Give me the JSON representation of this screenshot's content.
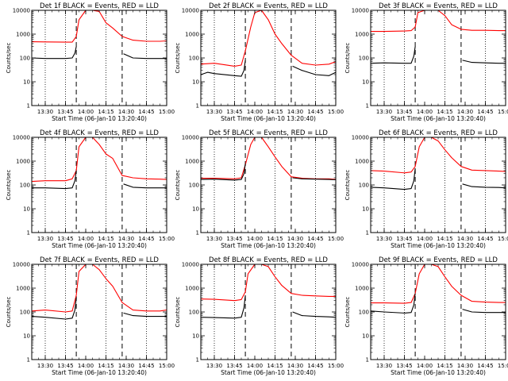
{
  "chart_data": [
    {
      "type": "line",
      "title": "Det 1f BLACK = Events, RED = LLD",
      "xlabel": "Start Time (06-Jan-10 13:20:40)",
      "ylabel": "Counts/sec",
      "xlim": [
        "13:20",
        "15:00"
      ],
      "ylim": [
        1,
        10000
      ],
      "y_scale": "log",
      "x_ticks": [
        "13:30",
        "13:45",
        "14:00",
        "14:15",
        "14:30",
        "14:45",
        "15:00"
      ],
      "y_ticks": [
        "1",
        "10",
        "100",
        "1000",
        "10000"
      ],
      "dotted_lines_at": [
        "13:30",
        "13:45",
        "14:15",
        "14:45"
      ],
      "dashed_lines_at": [
        "13:53",
        "14:27"
      ],
      "series": [
        {
          "color": "#ff0000",
          "x": [
            "13:20",
            "13:30",
            "13:45",
            "13:50",
            "13:53",
            "13:55",
            "14:00",
            "14:05",
            "14:10",
            "14:15",
            "14:20",
            "14:27",
            "14:35",
            "14:45",
            "14:55",
            "15:00"
          ],
          "values": [
            480,
            470,
            460,
            460,
            800,
            4000,
            10000,
            10000,
            9000,
            3000,
            1800,
            800,
            560,
            500,
            500,
            520
          ]
        },
        {
          "color": "#000000",
          "x": [
            "13:20",
            "13:30",
            "13:45",
            "13:50",
            "13:52",
            "13:53",
            "14:27",
            "14:28",
            "14:35",
            "14:45",
            "14:55",
            "15:00"
          ],
          "values": [
            100,
            95,
            95,
            100,
            160,
            300,
            null,
            150,
            100,
            95,
            95,
            95
          ]
        }
      ]
    },
    {
      "type": "line",
      "title": "Det 2f BLACK = Events, RED = LLD",
      "xlabel": "Start Time (06-Jan-10 13:20:40)",
      "ylabel": "Counts/sec",
      "xlim": [
        "13:20",
        "15:00"
      ],
      "ylim": [
        1,
        10000
      ],
      "y_scale": "log",
      "x_ticks": [
        "13:30",
        "13:45",
        "14:00",
        "14:15",
        "14:30",
        "14:45",
        "15:00"
      ],
      "y_ticks": [
        "1",
        "10",
        "100",
        "1000",
        "10000"
      ],
      "dotted_lines_at": [
        "13:30",
        "13:45",
        "14:15",
        "14:45"
      ],
      "dashed_lines_at": [
        "13:53",
        "14:27"
      ],
      "series": [
        {
          "color": "#ff0000",
          "x": [
            "13:20",
            "13:30",
            "13:45",
            "13:50",
            "13:53",
            "13:57",
            "14:00",
            "14:05",
            "14:10",
            "14:15",
            "14:20",
            "14:27",
            "14:35",
            "14:45",
            "14:55",
            "15:00"
          ],
          "values": [
            55,
            60,
            45,
            50,
            200,
            2000,
            8000,
            10000,
            4000,
            1000,
            400,
            130,
            60,
            50,
            55,
            70
          ]
        },
        {
          "color": "#000000",
          "x": [
            "13:20",
            "13:25",
            "13:30",
            "13:45",
            "13:50",
            "13:52",
            "13:53",
            "14:27",
            "14:28",
            "14:35",
            "14:45",
            "14:55",
            "15:00"
          ],
          "values": [
            20,
            25,
            22,
            18,
            17,
            30,
            80,
            null,
            45,
            30,
            20,
            18,
            25
          ]
        }
      ]
    },
    {
      "type": "line",
      "title": "Det 3f BLACK = Events, RED = LLD",
      "xlabel": "Start Time (06-Jan-10 13:20:40)",
      "ylabel": "Counts/sec",
      "xlim": [
        "13:20",
        "15:00"
      ],
      "ylim": [
        1,
        10000
      ],
      "y_scale": "log",
      "x_ticks": [
        "13:30",
        "13:45",
        "14:00",
        "14:15",
        "14:30",
        "14:45",
        "15:00"
      ],
      "y_ticks": [
        "1",
        "10",
        "100",
        "1000",
        "10000"
      ],
      "dotted_lines_at": [
        "13:30",
        "13:45",
        "14:15",
        "14:45"
      ],
      "dashed_lines_at": [
        "13:53",
        "14:27"
      ],
      "series": [
        {
          "color": "#ff0000",
          "x": [
            "13:20",
            "13:30",
            "13:45",
            "13:50",
            "13:53",
            "13:55",
            "14:00",
            "14:05",
            "14:10",
            "14:15",
            "14:20",
            "14:27",
            "14:35",
            "14:45",
            "14:55",
            "15:00"
          ],
          "values": [
            1300,
            1300,
            1350,
            1400,
            2000,
            8000,
            10000,
            10000,
            10000,
            6000,
            2500,
            1600,
            1450,
            1450,
            1400,
            1400
          ]
        },
        {
          "color": "#000000",
          "x": [
            "13:20",
            "13:30",
            "13:45",
            "13:50",
            "13:52",
            "13:53",
            "14:27",
            "14:28",
            "14:35",
            "14:45",
            "14:55",
            "15:00"
          ],
          "values": [
            60,
            62,
            60,
            60,
            120,
            300,
            null,
            80,
            65,
            62,
            60,
            60
          ]
        }
      ]
    },
    {
      "type": "line",
      "title": "Det 4f BLACK = Events, RED = LLD",
      "xlabel": "Start Time (06-Jan-10 13:20:40)",
      "ylabel": "Counts/sec",
      "xlim": [
        "13:20",
        "15:00"
      ],
      "ylim": [
        1,
        10000
      ],
      "y_scale": "log",
      "x_ticks": [
        "13:30",
        "13:45",
        "14:00",
        "14:15",
        "14:30",
        "14:45",
        "15:00"
      ],
      "y_ticks": [
        "1",
        "10",
        "100",
        "1000",
        "10000"
      ],
      "dotted_lines_at": [
        "13:30",
        "13:45",
        "14:15",
        "14:45"
      ],
      "dashed_lines_at": [
        "13:53",
        "14:27"
      ],
      "series": [
        {
          "color": "#ff0000",
          "x": [
            "13:20",
            "13:30",
            "13:45",
            "13:50",
            "13:53",
            "13:55",
            "14:00",
            "14:05",
            "14:10",
            "14:15",
            "14:20",
            "14:27",
            "14:35",
            "14:45",
            "14:55",
            "15:00"
          ],
          "values": [
            140,
            150,
            150,
            180,
            400,
            4000,
            10000,
            10000,
            5000,
            2000,
            1300,
            250,
            200,
            180,
            175,
            170
          ]
        },
        {
          "color": "#000000",
          "x": [
            "13:20",
            "13:30",
            "13:45",
            "13:50",
            "13:52",
            "13:53",
            "14:27",
            "14:28",
            "14:35",
            "14:45",
            "14:55",
            "15:00"
          ],
          "values": [
            75,
            75,
            70,
            75,
            150,
            400,
            null,
            110,
            80,
            75,
            75,
            75
          ]
        }
      ]
    },
    {
      "type": "line",
      "title": "Det 5f BLACK = Events, RED = LLD",
      "xlabel": "Start Time (06-Jan-10 13:20:40)",
      "ylabel": "Counts/sec",
      "xlim": [
        "13:20",
        "15:00"
      ],
      "ylim": [
        1,
        10000
      ],
      "y_scale": "log",
      "x_ticks": [
        "13:30",
        "13:45",
        "14:00",
        "14:15",
        "14:30",
        "14:45",
        "15:00"
      ],
      "y_ticks": [
        "1",
        "10",
        "100",
        "1000",
        "10000"
      ],
      "dotted_lines_at": [
        "13:30",
        "13:45",
        "14:15",
        "14:45"
      ],
      "dashed_lines_at": [
        "13:53",
        "14:27"
      ],
      "series": [
        {
          "color": "#ff0000",
          "x": [
            "13:20",
            "13:30",
            "13:45",
            "13:50",
            "13:53",
            "13:57",
            "14:00",
            "14:05",
            "14:10",
            "14:15",
            "14:20",
            "14:27",
            "14:35",
            "14:45",
            "14:55",
            "15:00"
          ],
          "values": [
            190,
            190,
            180,
            200,
            700,
            5000,
            10000,
            10000,
            4000,
            1500,
            600,
            220,
            190,
            180,
            180,
            170
          ]
        },
        {
          "color": "#000000",
          "x": [
            "13:20",
            "13:30",
            "13:45",
            "13:50",
            "13:52",
            "13:53",
            "14:27",
            "14:28",
            "14:35",
            "14:45",
            "14:55",
            "15:00"
          ],
          "values": [
            170,
            175,
            160,
            170,
            300,
            800,
            null,
            200,
            180,
            175,
            170,
            165
          ]
        }
      ]
    },
    {
      "type": "line",
      "title": "Det 6f BLACK = Events, RED = LLD",
      "xlabel": "Start Time (06-Jan-10 13:20:40)",
      "ylabel": "Counts/sec",
      "xlim": [
        "13:20",
        "15:00"
      ],
      "ylim": [
        1,
        10000
      ],
      "y_scale": "log",
      "x_ticks": [
        "13:30",
        "13:45",
        "14:00",
        "14:15",
        "14:30",
        "14:45",
        "15:00"
      ],
      "y_ticks": [
        "1",
        "10",
        "100",
        "1000",
        "10000"
      ],
      "dotted_lines_at": [
        "13:30",
        "13:45",
        "14:15",
        "14:45"
      ],
      "dashed_lines_at": [
        "13:53",
        "14:27"
      ],
      "series": [
        {
          "color": "#ff0000",
          "x": [
            "13:20",
            "13:30",
            "13:45",
            "13:50",
            "13:53",
            "13:56",
            "14:00",
            "14:05",
            "14:10",
            "14:15",
            "14:20",
            "14:27",
            "14:35",
            "14:45",
            "14:55",
            "15:00"
          ],
          "values": [
            400,
            380,
            320,
            350,
            600,
            4000,
            10000,
            10000,
            7000,
            3000,
            1400,
            600,
            420,
            400,
            380,
            370
          ]
        },
        {
          "color": "#000000",
          "x": [
            "13:20",
            "13:30",
            "13:45",
            "13:50",
            "13:52",
            "13:53",
            "14:27",
            "14:28",
            "14:35",
            "14:45",
            "14:55",
            "15:00"
          ],
          "values": [
            80,
            75,
            65,
            70,
            150,
            500,
            null,
            110,
            85,
            80,
            78,
            75
          ]
        }
      ]
    },
    {
      "type": "line",
      "title": "Det 7f BLACK = Events, RED = LLD",
      "xlabel": "Start Time (06-Jan-10 13:20:40)",
      "ylabel": "Counts/sec",
      "xlim": [
        "13:20",
        "15:00"
      ],
      "ylim": [
        1,
        10000
      ],
      "y_scale": "log",
      "x_ticks": [
        "13:30",
        "13:45",
        "14:00",
        "14:15",
        "14:30",
        "14:45",
        "15:00"
      ],
      "y_ticks": [
        "1",
        "10",
        "100",
        "1000",
        "10000"
      ],
      "dotted_lines_at": [
        "13:30",
        "13:45",
        "14:15",
        "14:45"
      ],
      "dashed_lines_at": [
        "13:53",
        "14:27"
      ],
      "series": [
        {
          "color": "#ff0000",
          "x": [
            "13:20",
            "13:30",
            "13:45",
            "13:50",
            "13:53",
            "13:55",
            "14:00",
            "14:05",
            "14:10",
            "14:15",
            "14:20",
            "14:27",
            "14:35",
            "14:45",
            "14:55",
            "15:00"
          ],
          "values": [
            110,
            120,
            100,
            110,
            500,
            5000,
            10000,
            10000,
            6000,
            2500,
            1200,
            250,
            120,
            110,
            110,
            120
          ]
        },
        {
          "color": "#000000",
          "x": [
            "13:20",
            "13:30",
            "13:45",
            "13:50",
            "13:52",
            "13:53",
            "14:27",
            "14:28",
            "14:35",
            "14:45",
            "14:55",
            "15:00"
          ],
          "values": [
            65,
            60,
            50,
            55,
            120,
            400,
            null,
            90,
            70,
            65,
            65,
            65
          ]
        }
      ]
    },
    {
      "type": "line",
      "title": "Det 8f BLACK = Events, RED = LLD",
      "xlabel": "Start Time (06-Jan-10 13:20:40)",
      "ylabel": "Counts/sec",
      "xlim": [
        "13:20",
        "15:00"
      ],
      "ylim": [
        1,
        10000
      ],
      "y_scale": "log",
      "x_ticks": [
        "13:30",
        "13:45",
        "14:00",
        "14:15",
        "14:30",
        "14:45",
        "15:00"
      ],
      "y_ticks": [
        "1",
        "10",
        "100",
        "1000",
        "10000"
      ],
      "dotted_lines_at": [
        "13:30",
        "13:45",
        "14:15",
        "14:45"
      ],
      "dashed_lines_at": [
        "13:53",
        "14:27"
      ],
      "series": [
        {
          "color": "#ff0000",
          "x": [
            "13:20",
            "13:30",
            "13:45",
            "13:50",
            "13:53",
            "13:55",
            "14:00",
            "14:05",
            "14:10",
            "14:15",
            "14:20",
            "14:27",
            "14:35",
            "14:45",
            "14:55",
            "15:00"
          ],
          "values": [
            350,
            340,
            300,
            330,
            700,
            4000,
            10000,
            10000,
            8000,
            3000,
            1300,
            600,
            500,
            470,
            450,
            450
          ]
        },
        {
          "color": "#000000",
          "x": [
            "13:20",
            "13:30",
            "13:45",
            "13:50",
            "13:52",
            "13:53",
            "14:27",
            "14:28",
            "14:35",
            "14:45",
            "14:55",
            "15:00"
          ],
          "values": [
            60,
            58,
            55,
            60,
            150,
            500,
            null,
            100,
            70,
            65,
            62,
            60
          ]
        }
      ]
    },
    {
      "type": "line",
      "title": "Det 9f BLACK = Events, RED = LLD",
      "xlabel": "Start Time (06-Jan-10 13:20:40)",
      "ylabel": "Counts/sec",
      "xlim": [
        "13:20",
        "15:00"
      ],
      "ylim": [
        1,
        10000
      ],
      "y_scale": "log",
      "x_ticks": [
        "13:30",
        "13:45",
        "14:00",
        "14:15",
        "14:30",
        "14:45",
        "15:00"
      ],
      "y_ticks": [
        "1",
        "10",
        "100",
        "1000",
        "10000"
      ],
      "dotted_lines_at": [
        "13:30",
        "13:45",
        "14:15",
        "14:45"
      ],
      "dashed_lines_at": [
        "13:53",
        "14:27"
      ],
      "series": [
        {
          "color": "#ff0000",
          "x": [
            "13:20",
            "13:30",
            "13:45",
            "13:50",
            "13:53",
            "13:56",
            "14:00",
            "14:05",
            "14:10",
            "14:15",
            "14:20",
            "14:27",
            "14:35",
            "14:45",
            "14:55",
            "15:00"
          ],
          "values": [
            240,
            240,
            230,
            250,
            600,
            4000,
            10000,
            10000,
            8000,
            3000,
            1200,
            500,
            280,
            260,
            250,
            250
          ]
        },
        {
          "color": "#000000",
          "x": [
            "13:20",
            "13:30",
            "13:45",
            "13:50",
            "13:52",
            "13:53",
            "14:27",
            "14:28",
            "14:35",
            "14:45",
            "14:55",
            "15:00"
          ],
          "values": [
            110,
            100,
            90,
            95,
            200,
            600,
            null,
            130,
            100,
            95,
            95,
            95
          ]
        }
      ]
    }
  ]
}
